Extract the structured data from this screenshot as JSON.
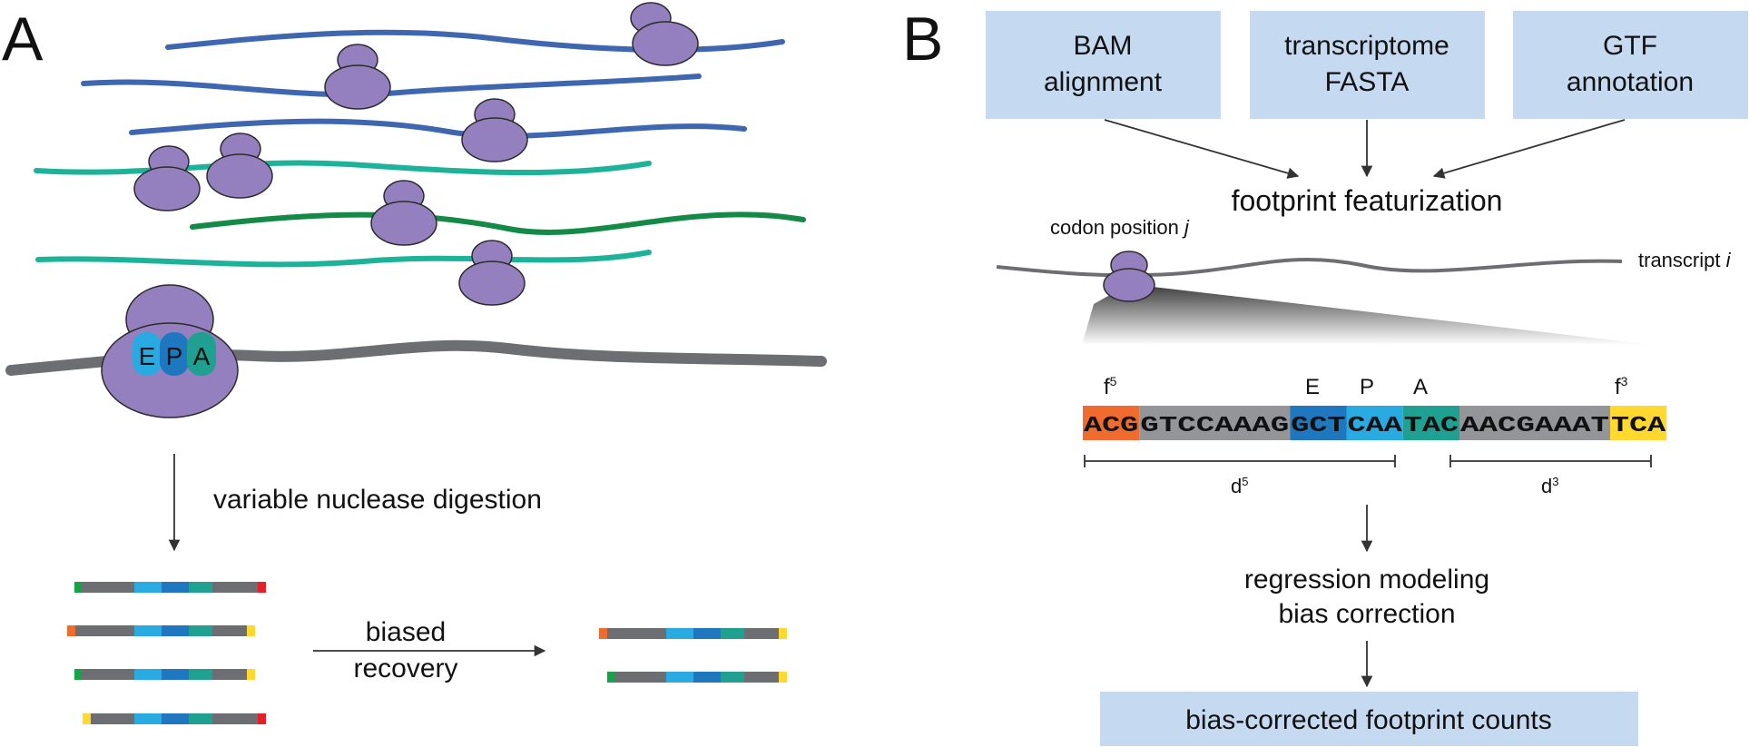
{
  "panel_a": {
    "label": "A",
    "ribosome_sites": [
      "E",
      "P",
      "A"
    ],
    "digestion_label": "variable nuclease digestion",
    "recovery_label_line1": "biased",
    "recovery_label_line2": "recovery"
  },
  "panel_b": {
    "label": "B",
    "inputs": [
      {
        "line1": "BAM",
        "line2": "alignment"
      },
      {
        "line1": "transcriptome",
        "line2": "FASTA"
      },
      {
        "line1": "GTF",
        "line2": "annotation"
      }
    ],
    "featurization_label": "footprint featurization",
    "codon_position_label": "codon position ",
    "codon_position_var": "j",
    "transcript_label": "transcript ",
    "transcript_var": "i",
    "sequence_segments": [
      {
        "text": "ACG",
        "color": "#ef6b2e"
      },
      {
        "text": "GTCCAAAG",
        "color": "#939598"
      },
      {
        "text": "GCT",
        "color": "#1f78bf"
      },
      {
        "text": "CAA",
        "color": "#29abe2"
      },
      {
        "text": "TAC",
        "color": "#1fa090"
      },
      {
        "text": "AACGAAAT",
        "color": "#939598"
      },
      {
        "text": "TCA",
        "color": "#ffd92f"
      }
    ],
    "f5_label": "f",
    "f5_sup": "5",
    "f3_label": "f",
    "f3_sup": "3",
    "site_labels": [
      "E",
      "P",
      "A"
    ],
    "d5_label": "d",
    "d5_sup": "5",
    "d3_label": "d",
    "d3_sup": "3",
    "regression_line1": "regression modeling",
    "regression_line2": "bias correction",
    "output_label": "bias-corrected footprint counts"
  },
  "colors": {
    "ribosome": "#9580bf",
    "mrna_blue": "#3f66b0",
    "mrna_teal": "#1cb39a",
    "mrna_green": "#138a45",
    "mrna_gray": "#6d6e71",
    "site_e": "#29abe2",
    "site_p": "#1f78bf",
    "site_a": "#1fa090",
    "box_fill": "#c5d9f1",
    "end_green": "#17a34a",
    "end_red": "#e4202a",
    "end_orange": "#ef6b2e",
    "end_yellow": "#ffd92f"
  }
}
